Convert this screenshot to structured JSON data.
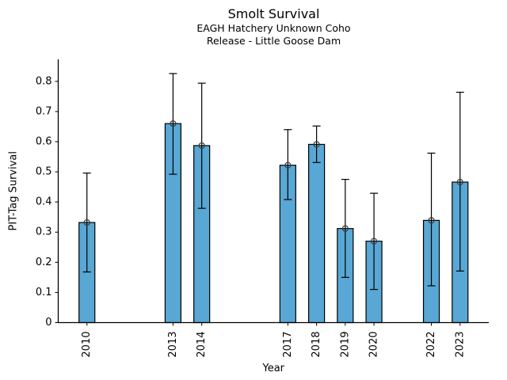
{
  "figure": {
    "background": "#ffffff"
  },
  "chart_data": {
    "type": "bar",
    "title": "Smolt Survival",
    "subtitle1": "EAGH Hatchery Unknown Coho",
    "subtitle2": "Release - Little Goose Dam",
    "xlabel": "Year",
    "ylabel": "PIT-Tag Survival",
    "categories": [
      2010,
      2013,
      2014,
      2017,
      2018,
      2019,
      2020,
      2022,
      2023
    ],
    "series": [
      {
        "name": "PIT-Tag Survival",
        "values": [
          0.332,
          0.66,
          0.587,
          0.522,
          0.591,
          0.312,
          0.27,
          0.339,
          0.466
        ],
        "error_low": [
          0.168,
          0.492,
          0.379,
          0.408,
          0.531,
          0.15,
          0.11,
          0.122,
          0.171
        ],
        "error_high": [
          0.496,
          0.826,
          0.794,
          0.64,
          0.652,
          0.475,
          0.429,
          0.562,
          0.764
        ]
      }
    ],
    "xlim": [
      2009,
      2024
    ],
    "ylim": [
      0,
      0.873
    ],
    "y_ticks": [
      {
        "value": 0.0,
        "label": "0"
      },
      {
        "value": 0.1,
        "label": "0.1"
      },
      {
        "value": 0.2,
        "label": "0.2"
      },
      {
        "value": 0.3,
        "label": "0.3"
      },
      {
        "value": 0.4,
        "label": "0.4"
      },
      {
        "value": 0.5,
        "label": "0.5"
      },
      {
        "value": 0.6,
        "label": "0.6"
      },
      {
        "value": 0.7,
        "label": "0.7"
      },
      {
        "value": 0.8,
        "label": "0.8"
      }
    ],
    "x_tick_labels": [
      "2010",
      "2013",
      "2014",
      "2017",
      "2018",
      "2019",
      "2020",
      "2022",
      "2023"
    ],
    "x_tick_rotation_deg": 90,
    "grid": false,
    "legend": null,
    "marker": "open-circle",
    "colors": {
      "bar_fill": "#58a7d4",
      "bar_edge": "#000000",
      "error_bar": "#000000",
      "marker_edge": "#3a3a3a",
      "axis": "#000000",
      "text": "#000000"
    }
  }
}
